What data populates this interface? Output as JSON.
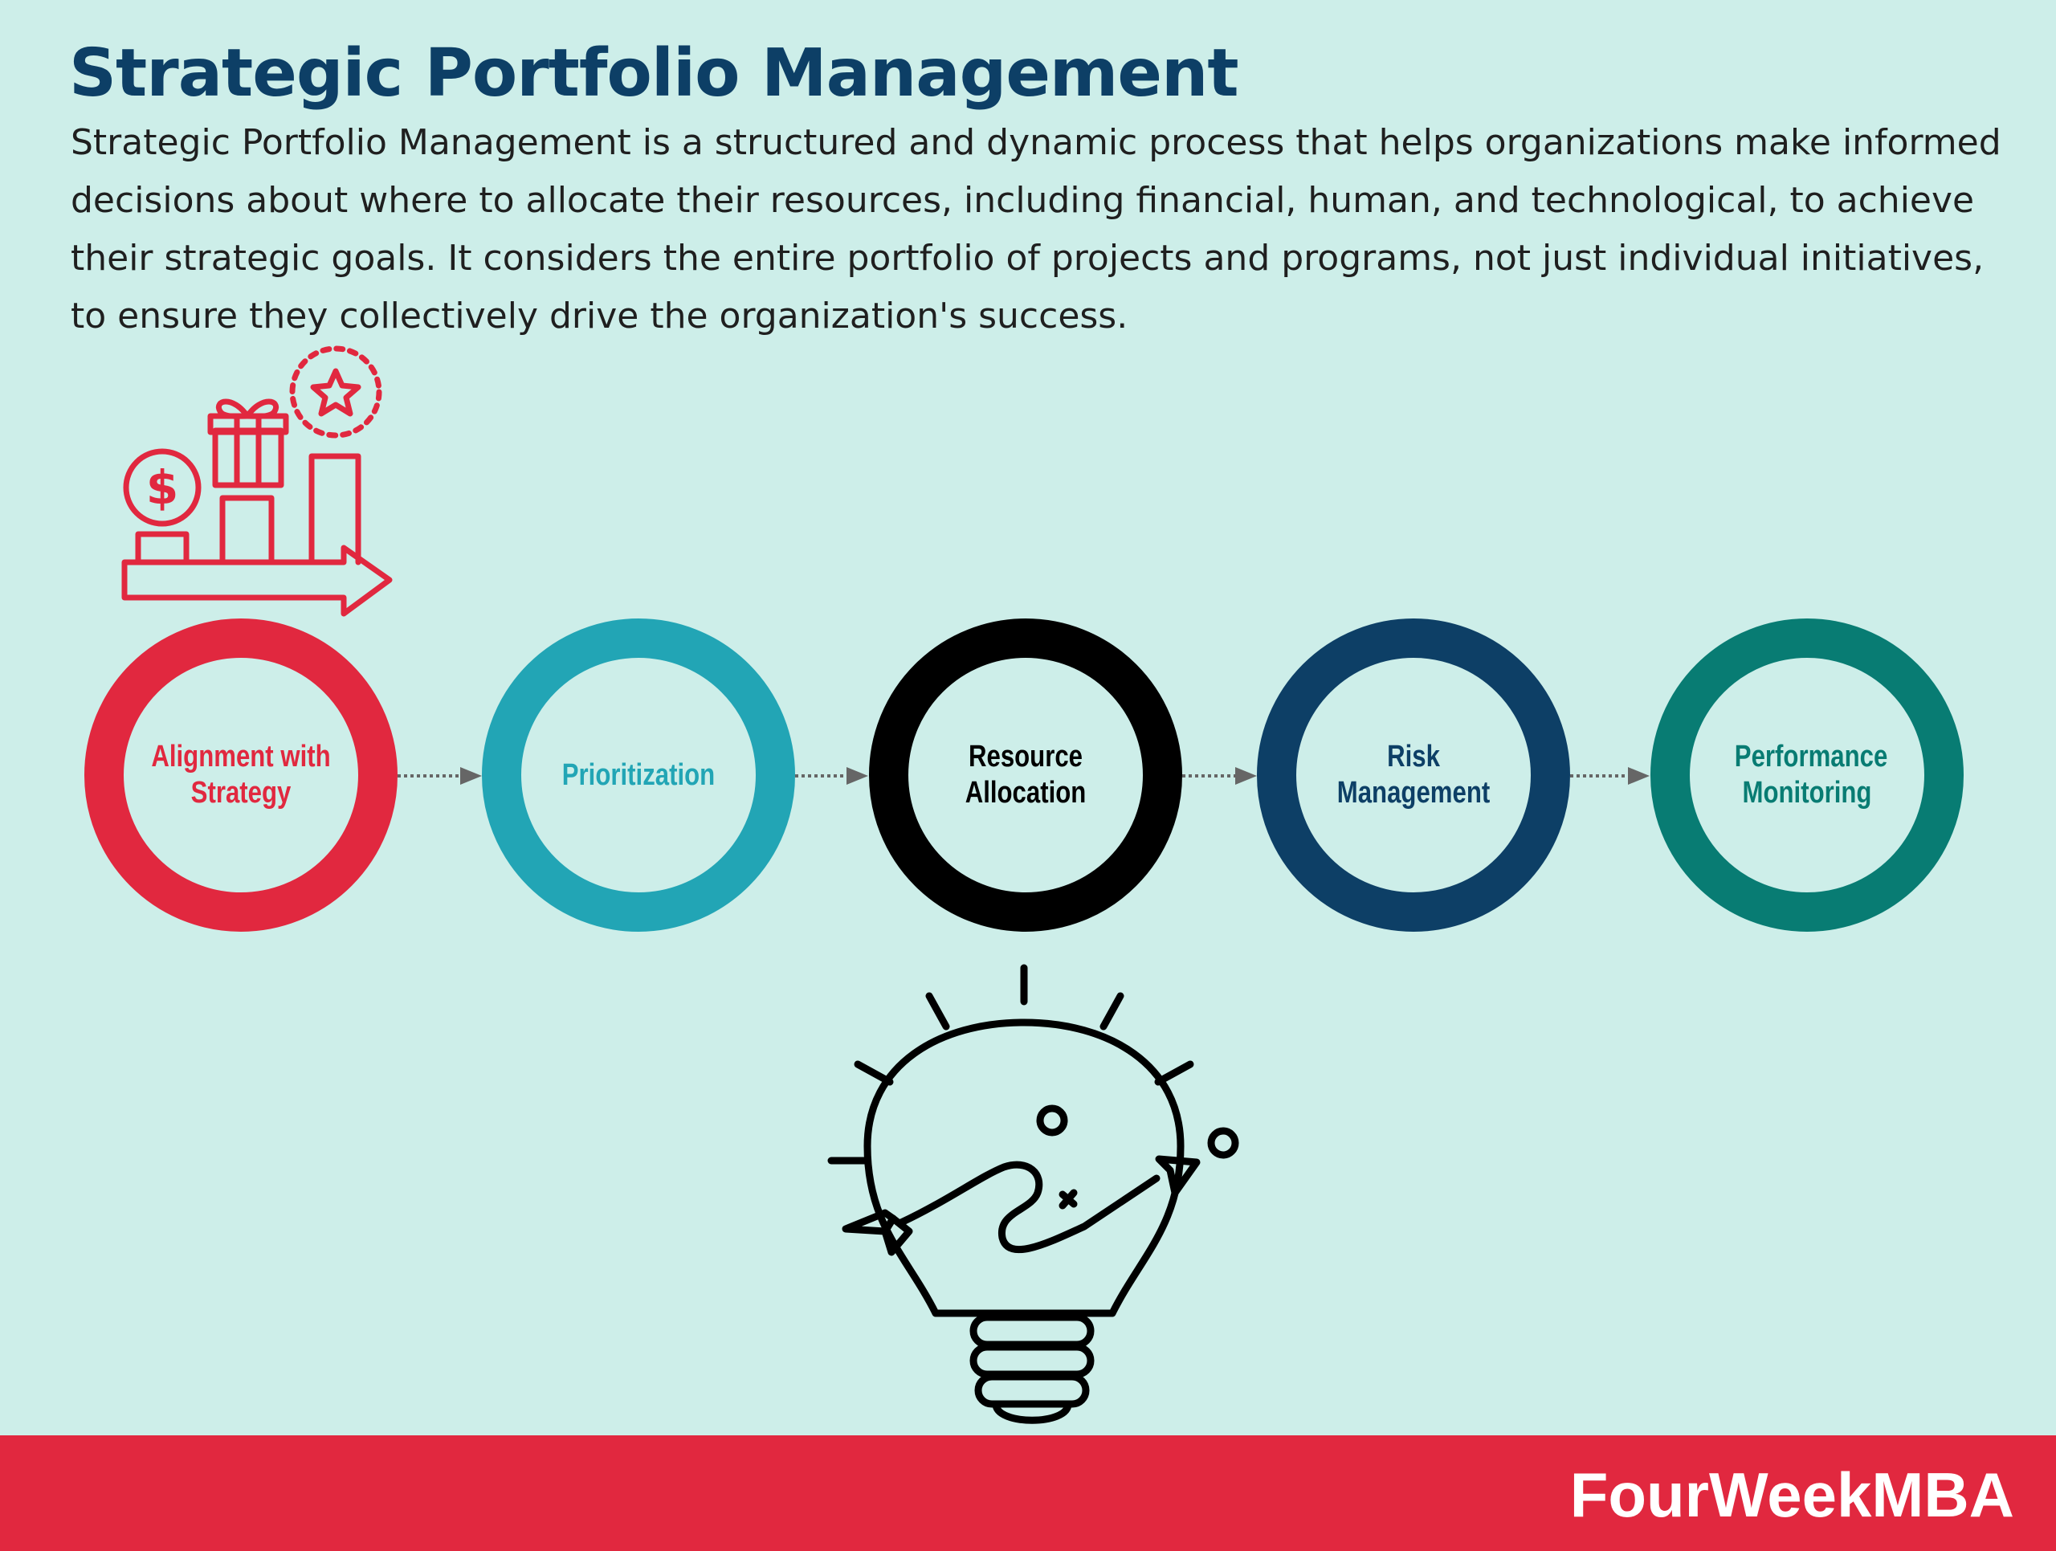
{
  "header": {
    "title": "Strategic Portfolio Management",
    "description": "Strategic Portfolio Management is a structured and dynamic process that helps organizations make informed decisions about where to allocate their resources, including financial, human, and technological, to achieve their strategic goals. It considers the entire portfolio of projects and programs, not just individual initiatives, to ensure they collectively drive the organization's success."
  },
  "steps": [
    {
      "label": "Alignment with Strategy",
      "color": "#e1283f"
    },
    {
      "label": "Prioritization",
      "color": "#22a5b5"
    },
    {
      "label": "Resource Allocation",
      "color": "#000000"
    },
    {
      "label": "Risk Management",
      "color": "#0d3f66"
    },
    {
      "label": "Performance Monitoring",
      "color": "#087c73"
    }
  ],
  "icons": {
    "top": "growth-rewards-icon",
    "bottom": "lightbulb-target-icon"
  },
  "footer": {
    "brand": "FourWeekMBA",
    "color": "#e1283f"
  }
}
